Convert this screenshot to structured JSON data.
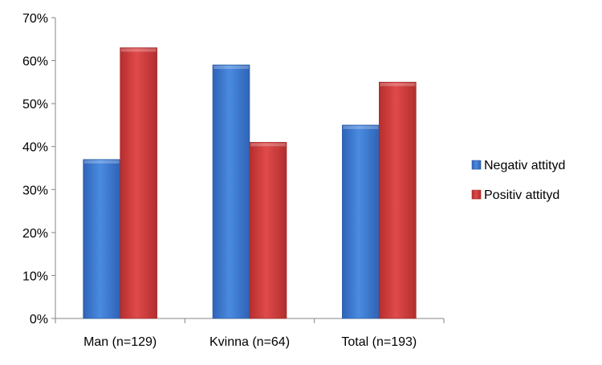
{
  "chart_data": {
    "type": "bar",
    "categories": [
      "Man (n=129)",
      "Kvinna (n=64)",
      "Total (n=193)"
    ],
    "series": [
      {
        "name": "Negativ attityd",
        "values": [
          37,
          59,
          45
        ],
        "color": "#3A73C8"
      },
      {
        "name": "Positiv attityd",
        "values": [
          63,
          41,
          55
        ],
        "color": "#C83A3A"
      }
    ],
    "ylim": [
      0,
      70
    ],
    "yticks": [
      0,
      10,
      20,
      30,
      40,
      50,
      60,
      70
    ],
    "tick_suffix": "%",
    "legend_position": "right",
    "grid": false
  }
}
